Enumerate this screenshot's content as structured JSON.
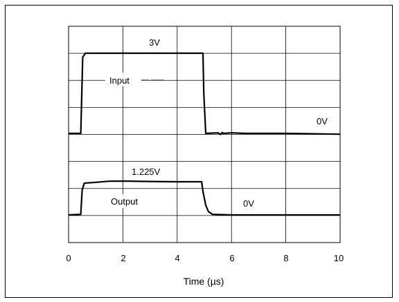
{
  "chart_data": {
    "type": "line",
    "xlabel": "Time (µs)",
    "x_ticks": [
      "0",
      "2",
      "4",
      "6",
      "8",
      "10"
    ],
    "xlim": [
      0,
      10
    ],
    "grid": true,
    "series": [
      {
        "name": "Input",
        "level_label": "3V",
        "baseline_label": "0V",
        "x": [
          0,
          0.45,
          0.52,
          0.62,
          2,
          4,
          4.95,
          4.98,
          5.05,
          5.5,
          5.6,
          5.65,
          5.7,
          6,
          6.5,
          8,
          10
        ],
        "y": [
          0,
          0,
          2.85,
          3.0,
          3.0,
          3.0,
          3.0,
          1.5,
          0,
          0.02,
          -0.04,
          0.03,
          0,
          0.02,
          0,
          0,
          -0.03
        ]
      },
      {
        "name": "Output",
        "level_label": "1.225V",
        "baseline_label": "0V",
        "x": [
          0,
          0.45,
          0.5,
          0.58,
          1,
          1.5,
          2,
          3,
          4,
          4.9,
          4.95,
          5.05,
          5.15,
          5.3,
          6,
          8,
          10
        ],
        "y": [
          0,
          0.02,
          0.9,
          1.15,
          1.18,
          1.22,
          1.225,
          1.21,
          1.2,
          1.2,
          0.85,
          0.35,
          0.12,
          0.02,
          0,
          0,
          0
        ]
      }
    ]
  }
}
